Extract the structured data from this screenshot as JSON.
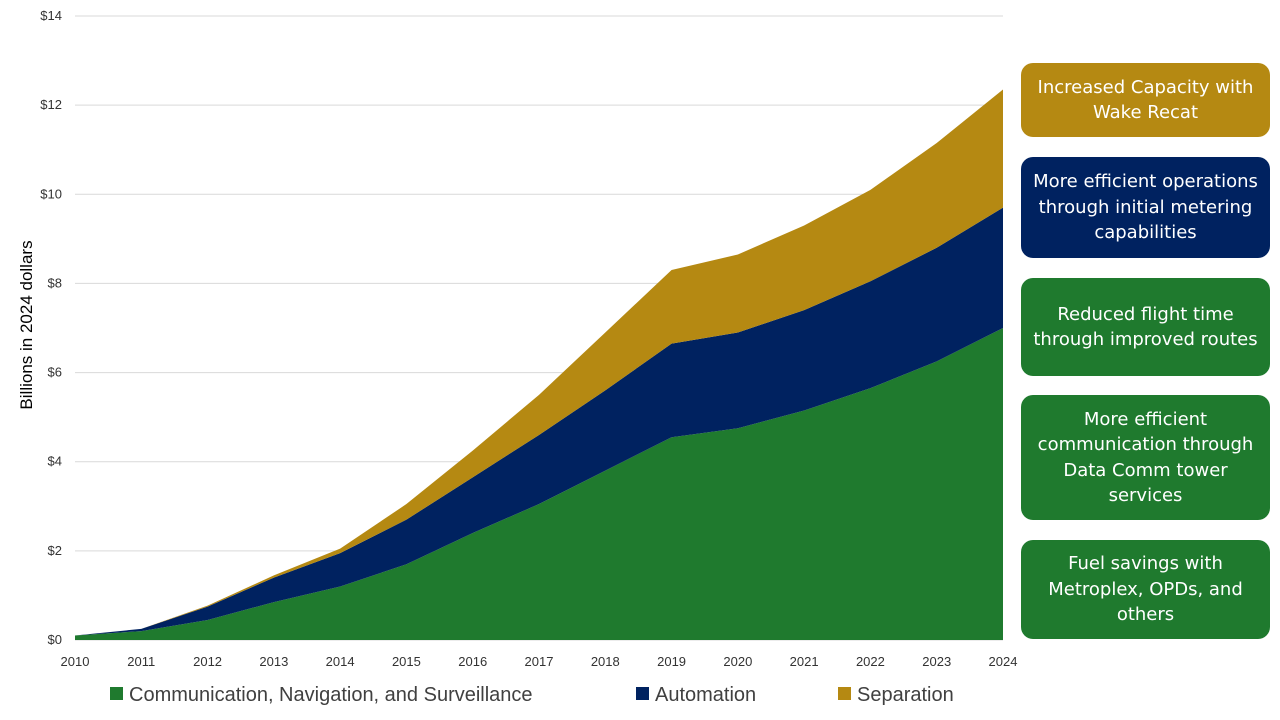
{
  "chart_data": {
    "type": "area",
    "stacked": true,
    "title": "",
    "xlabel": "",
    "ylabel": "Billions in 2024 dollars",
    "x": [
      "2010",
      "2011",
      "2012",
      "2013",
      "2014",
      "2015",
      "2016",
      "2017",
      "2018",
      "2019",
      "2020",
      "2021",
      "2022",
      "2023",
      "2024"
    ],
    "ylim": [
      0,
      14
    ],
    "yticks": [
      0,
      2,
      4,
      6,
      8,
      10,
      12,
      14
    ],
    "ytick_labels": [
      "$0",
      "$2",
      "$4",
      "$6",
      "$8",
      "$10",
      "$12",
      "$14"
    ],
    "grid": true,
    "legend_position": "bottom",
    "series": [
      {
        "name": "Communication, Navigation, and Surveillance",
        "color": "#1f7a2e",
        "values": [
          0.1,
          0.2,
          0.45,
          0.85,
          1.2,
          1.7,
          2.4,
          3.05,
          3.8,
          4.55,
          4.75,
          5.15,
          5.65,
          6.25,
          7.0
        ]
      },
      {
        "name": "Automation",
        "color": "#002260",
        "values": [
          0.0,
          0.05,
          0.3,
          0.55,
          0.75,
          1.0,
          1.25,
          1.55,
          1.8,
          2.1,
          2.15,
          2.25,
          2.4,
          2.55,
          2.7
        ]
      },
      {
        "name": "Separation",
        "color": "#b58912",
        "values": [
          0.0,
          0.0,
          0.02,
          0.05,
          0.1,
          0.35,
          0.6,
          0.9,
          1.3,
          1.65,
          1.75,
          1.9,
          2.05,
          2.35,
          2.65
        ]
      }
    ]
  },
  "callouts": [
    {
      "text": "Increased Capacity with Wake Recat",
      "color": "#b58912"
    },
    {
      "text": "More efficient operations through initial metering capabilities",
      "color": "#002260"
    },
    {
      "text": "Reduced flight time through improved routes",
      "color": "#1f7a2e"
    },
    {
      "text": "More efficient communication through Data Comm tower services",
      "color": "#1f7a2e"
    },
    {
      "text": "Fuel savings with Metroplex, OPDs, and others",
      "color": "#1f7a2e"
    }
  ]
}
